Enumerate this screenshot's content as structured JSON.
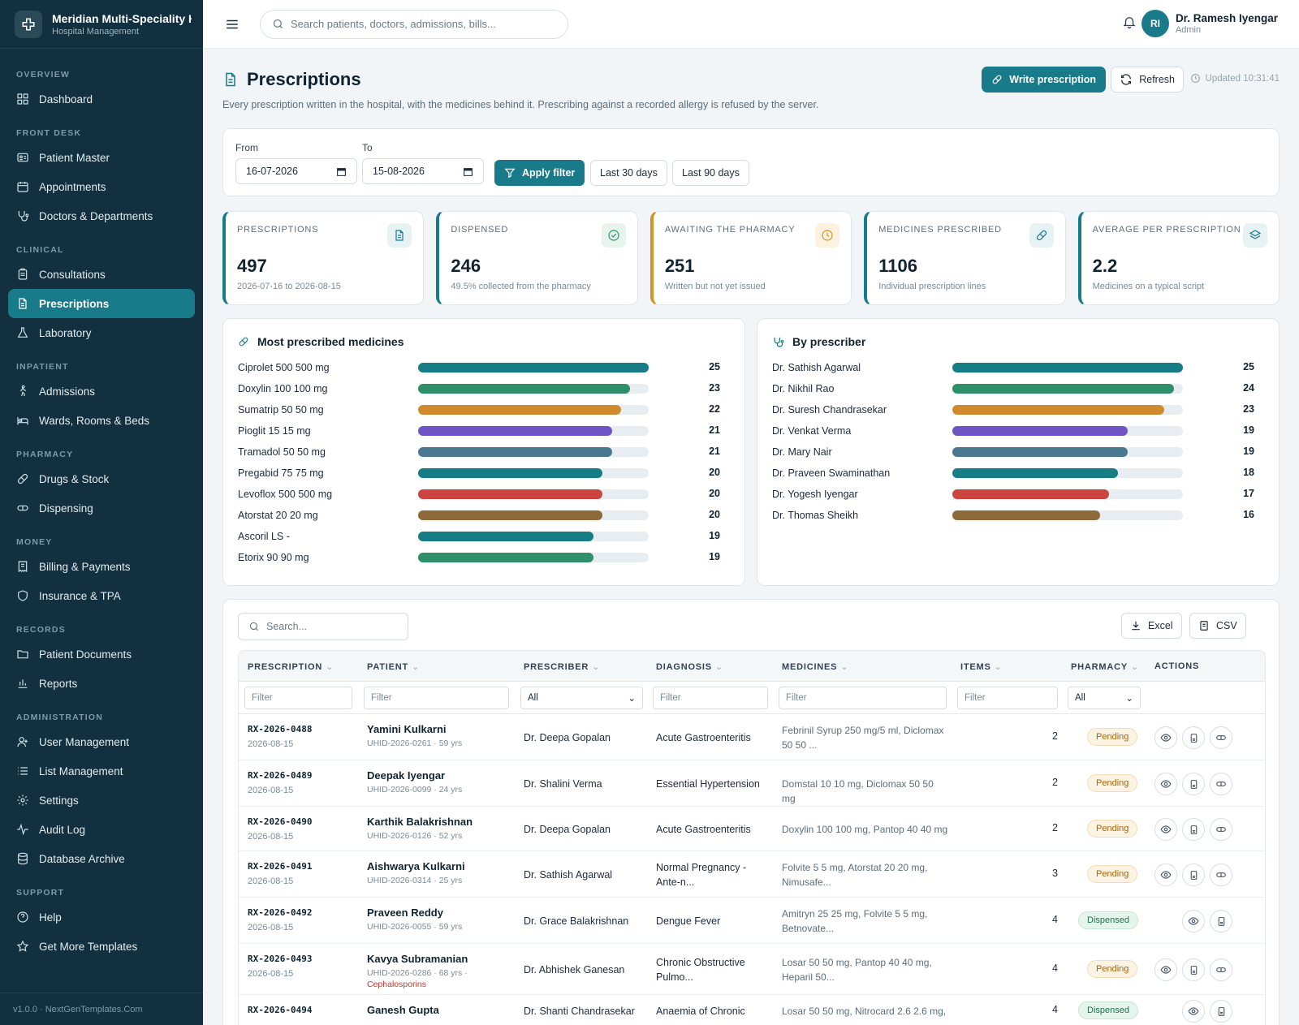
{
  "brand": {
    "title": "Meridian Multi-Speciality Hospital",
    "subtitle": "Hospital Management"
  },
  "nav": {
    "sections": {
      "overview": "OVERVIEW",
      "front_desk": "FRONT DESK",
      "clinical": "CLINICAL",
      "inpatient": "INPATIENT",
      "pharmacy": "PHARMACY",
      "money": "MONEY",
      "records": "RECORDS",
      "administration": "ADMINISTRATION",
      "support": "SUPPORT"
    },
    "items": {
      "dashboard": "Dashboard",
      "patient_master": "Patient Master",
      "appointments": "Appointments",
      "doctors": "Doctors & Departments",
      "consultations": "Consultations",
      "prescriptions": "Prescriptions",
      "laboratory": "Laboratory",
      "admissions": "Admissions",
      "wards": "Wards, Rooms & Beds",
      "drugs": "Drugs & Stock",
      "dispensing": "Dispensing",
      "billing": "Billing & Payments",
      "insurance": "Insurance & TPA",
      "patient_docs": "Patient Documents",
      "reports": "Reports",
      "user_mgmt": "User Management",
      "list_mgmt": "List Management",
      "settings": "Settings",
      "audit": "Audit Log",
      "archive": "Database Archive",
      "help": "Help",
      "templates": "Get More Templates"
    },
    "active": "prescriptions",
    "footer": "v1.0.0 · NextGenTemplates.Com"
  },
  "topbar": {
    "search_placeholder": "Search patients, doctors, admissions, bills...",
    "user_initials": "RI",
    "user_name": "Dr. Ramesh Iyengar",
    "user_role": "Admin"
  },
  "page": {
    "title": "Prescriptions",
    "description": "Every prescription written in the hospital, with the medicines behind it. Prescribing against a recorded allergy is refused by the server.",
    "write_btn": "Write prescription",
    "refresh_btn": "Refresh",
    "updated": "Updated 10:31:41"
  },
  "filter": {
    "from_label": "From",
    "to_label": "To",
    "from_value": "16-07-2026",
    "to_value": "15-08-2026",
    "apply": "Apply filter",
    "last30": "Last 30 days",
    "last90": "Last 90 days"
  },
  "stats": [
    {
      "label": "PRESCRIPTIONS",
      "value": "497",
      "sub": "2026-07-16 to 2026-08-15",
      "color": "#197a8a",
      "icon": "document-icon"
    },
    {
      "label": "DISPENSED",
      "value": "246",
      "sub": "49.5% collected from the pharmacy",
      "color": "#197a8a",
      "icon": "check-circle-icon"
    },
    {
      "label": "AWAITING THE PHARMACY",
      "value": "251",
      "sub": "Written but not yet issued",
      "color": "#d4922a",
      "icon": "clock-icon"
    },
    {
      "label": "MEDICINES PRESCRIBED",
      "value": "1106",
      "sub": "Individual prescription lines",
      "color": "#197a8a",
      "icon": "pill-icon"
    },
    {
      "label": "AVERAGE PER PRESCRIPTION",
      "value": "2.2",
      "sub": "Medicines on a typical script",
      "color": "#197a8a",
      "icon": "layers-icon"
    }
  ],
  "chart_data": [
    {
      "type": "bar",
      "title": "Most prescribed medicines",
      "categories": [
        "Ciprolet 500 500 mg",
        "Doxylin 100 100 mg",
        "Sumatrip 50 50 mg",
        "Pioglit 15 15 mg",
        "Tramadol 50 50 mg",
        "Pregabid 75 75 mg",
        "Levoflox 500 500 mg",
        "Atorstat 20 20 mg",
        "Ascoril LS -",
        "Etorix 90 90 mg"
      ],
      "values": [
        25,
        23,
        22,
        21,
        21,
        20,
        20,
        20,
        19,
        19
      ],
      "colors": [
        "#167c86",
        "#2e8f6a",
        "#d08a2e",
        "#6e54c4",
        "#4a7891",
        "#167c86",
        "#cc4440",
        "#8c6a3a",
        "#167c86",
        "#2e8f6a"
      ]
    },
    {
      "type": "bar",
      "title": "By prescriber",
      "categories": [
        "Dr. Sathish Agarwal",
        "Dr. Nikhil Rao",
        "Dr. Suresh Chandrasekar",
        "Dr. Venkat Verma",
        "Dr. Mary Nair",
        "Dr. Praveen Swaminathan",
        "Dr. Yogesh Iyengar",
        "Dr. Thomas Sheikh"
      ],
      "values": [
        25,
        24,
        23,
        19,
        19,
        18,
        17,
        16
      ],
      "colors": [
        "#167c86",
        "#2e8f6a",
        "#d08a2e",
        "#6e54c4",
        "#4a7891",
        "#167c86",
        "#cc4440",
        "#8c6a3a"
      ]
    }
  ],
  "table": {
    "search_placeholder": "Search...",
    "excel": "Excel",
    "csv": "CSV",
    "columns": [
      "PRESCRIPTION",
      "PATIENT",
      "PRESCRIBER",
      "DIAGNOSIS",
      "MEDICINES",
      "ITEMS",
      "PHARMACY",
      "ACTIONS"
    ],
    "filter_placeholder": "Filter",
    "select_all": "All",
    "rows": [
      {
        "id": "RX-2026-0488",
        "date": "2026-08-15",
        "patient": "Yamini Kulkarni",
        "uhid": "UHID-2026-0261 · 59 yrs",
        "allergy": "",
        "prescriber": "Dr. Deepa Gopalan",
        "diagnosis": "Acute Gastroenteritis",
        "medicines": "Febrinil Syrup 250 mg/5 ml, Diclomax 50 50 ...",
        "items": "2",
        "status": "Pending"
      },
      {
        "id": "RX-2026-0489",
        "date": "2026-08-15",
        "patient": "Deepak Iyengar",
        "uhid": "UHID-2026-0099 · 24 yrs",
        "allergy": "",
        "prescriber": "Dr. Shalini Verma",
        "diagnosis": "Essential Hypertension",
        "medicines": "Domstal 10 10 mg, Diclomax 50 50 mg",
        "items": "2",
        "status": "Pending"
      },
      {
        "id": "RX-2026-0490",
        "date": "2026-08-15",
        "patient": "Karthik Balakrishnan",
        "uhid": "UHID-2026-0126 · 52 yrs",
        "allergy": "",
        "prescriber": "Dr. Deepa Gopalan",
        "diagnosis": "Acute Gastroenteritis",
        "medicines": "Doxylin 100 100 mg, Pantop 40 40 mg",
        "items": "2",
        "status": "Pending"
      },
      {
        "id": "RX-2026-0491",
        "date": "2026-08-15",
        "patient": "Aishwarya Kulkarni",
        "uhid": "UHID-2026-0314 · 25 yrs",
        "allergy": "",
        "prescriber": "Dr. Sathish Agarwal",
        "diagnosis": "Normal Pregnancy - Ante-n...",
        "medicines": "Folvite 5 5 mg, Atorstat 20 20 mg, Nimusafe...",
        "items": "3",
        "status": "Pending"
      },
      {
        "id": "RX-2026-0492",
        "date": "2026-08-15",
        "patient": "Praveen Reddy",
        "uhid": "UHID-2026-0055 · 59 yrs",
        "allergy": "",
        "prescriber": "Dr. Grace Balakrishnan",
        "diagnosis": "Dengue Fever",
        "medicines": "Amitryn 25 25 mg, Folvite 5 5 mg, Betnovate...",
        "items": "4",
        "status": "Dispensed"
      },
      {
        "id": "RX-2026-0493",
        "date": "2026-08-15",
        "patient": "Kavya Subramanian",
        "uhid": "UHID-2026-0286 · 68 yrs ·",
        "allergy": "Cephalosporins",
        "prescriber": "Dr. Abhishek Ganesan",
        "diagnosis": "Chronic Obstructive Pulmo...",
        "medicines": "Losar 50 50 mg, Pantop 40 40 mg, Heparil 50...",
        "items": "4",
        "status": "Pending"
      },
      {
        "id": "RX-2026-0494",
        "date": "",
        "patient": "Ganesh Gupta",
        "uhid": "",
        "allergy": "",
        "prescriber": "Dr. Shanti Chandrasekar",
        "diagnosis": "Anaemia of Chronic",
        "medicines": "Losar 50 50 mg, Nitrocard 2.6 2.6 mg,",
        "items": "4",
        "status": "Dispensed"
      }
    ]
  }
}
